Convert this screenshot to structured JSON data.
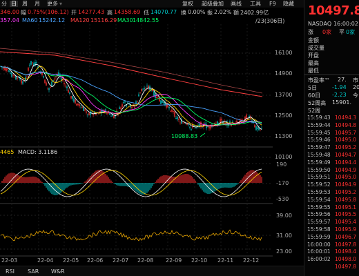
{
  "toolbar": {
    "tabs": [
      "分",
      "日",
      "周",
      "月",
      "更多"
    ],
    "active_tab": "日",
    "actions": [
      "复权",
      "超级叠加",
      "画线",
      "工具",
      "F9",
      "隐藏"
    ]
  },
  "ohlc": {
    "close_label": "收",
    "close": "346.00",
    "change_label": "幅",
    "change": "0.75%(106.12)",
    "open_label": "开",
    "open": "14277.43",
    "high_label": "高",
    "high": "14358.69",
    "low_label": "低",
    "low": "14070.77",
    "turnover_label": "换",
    "turnover": "0.00%",
    "amplitude_label": "振",
    "amplitude": "2.02%",
    "amount_label": "额",
    "amount": "2402.99亿"
  },
  "ma": {
    "ma5_value": "357.04",
    "ma60_label": "MA60",
    "ma60": "15242.12",
    "ma120_label": "MA120",
    "ma120": "15116.29",
    "ma30_label": "MA30",
    "ma30": "14842.55",
    "range_text": "/23(306日)"
  },
  "main_chart": {
    "y_ticks": [
      "16100",
      "14900",
      "13700",
      "12500",
      "11300",
      "10100"
    ],
    "low_marker": "10088.83"
  },
  "macd": {
    "prefix": "4465",
    "label": "MACD: 3.1186",
    "y_ticks": [
      "190",
      "-170",
      "-530"
    ]
  },
  "rsi": {
    "y_ticks": [
      "39.00",
      "31.00",
      "23.00"
    ]
  },
  "x_axis": [
    "22-03",
    "22-04",
    "22-05",
    "22-06",
    "22-07",
    "22-08",
    "22-09",
    "22-10",
    "22-11",
    "22-12"
  ],
  "bottom_tabs": [
    "RSI",
    "SAR",
    "W&R"
  ],
  "quote": {
    "price": "10497.8",
    "market": "NASDAQ",
    "time": "16:00:02",
    "limit_up_label": "涨",
    "limit_up_value": "0家",
    "limit_down_label": "平",
    "limit_down_value": "0家",
    "fields": [
      "金额",
      "成交量",
      "开盘",
      "最高",
      "最低"
    ],
    "pe_label": "市盈率™",
    "pe_value": "27.",
    "pe_extra": "市",
    "d5_label": "5日",
    "d5_value": "-1.94",
    "d5_extra": "20",
    "d60_label": "60日",
    "d60_value": "-2.23",
    "d60_extra": "今",
    "w52_high_label": "52周高",
    "w52_high_value": "15901.",
    "w52_low_label": "52周",
    "ticks": [
      {
        "t": "15:59:43",
        "p": "10494.3"
      },
      {
        "t": "15:59:44",
        "p": "10494.8"
      },
      {
        "t": "15:59:45",
        "p": "10495.7"
      },
      {
        "t": "15:59:46",
        "p": "10495.0"
      },
      {
        "t": "15:59:47",
        "p": "10495.2"
      },
      {
        "t": "15:59:48",
        "p": "10494.7"
      },
      {
        "t": "15:59:49",
        "p": "10494.4"
      },
      {
        "t": "15:59:50",
        "p": "10494.9"
      },
      {
        "t": "15:59:51",
        "p": "10495.0"
      },
      {
        "t": "15:59:52",
        "p": "10494.9"
      },
      {
        "t": "15:59:53",
        "p": "10495.2"
      },
      {
        "t": "15:59:54",
        "p": "10495.8"
      },
      {
        "t": "15:59:55",
        "p": "10495.1"
      },
      {
        "t": "15:59:56",
        "p": "10495.5"
      },
      {
        "t": "15:59:57",
        "p": "10495.4"
      },
      {
        "t": "15:59:58",
        "p": "10495.9"
      },
      {
        "t": "15:59:59",
        "p": "10496.7"
      },
      {
        "t": "16:00:00",
        "p": "10497.8"
      },
      {
        "t": "16:00:01",
        "p": "10498.4"
      },
      {
        "t": "16:00:02",
        "p": "10498.0"
      },
      {
        "t": "",
        "p": "10497.8"
      }
    ]
  },
  "colors": {
    "up": "#ff3030",
    "down": "#00c8c8",
    "ma5": "#ffffff",
    "ma10": "#ffd400",
    "ma20": "#ff3cff",
    "ma30": "#00ff66",
    "ma60": "#4aa3ff",
    "ma120": "#ff4040"
  }
}
